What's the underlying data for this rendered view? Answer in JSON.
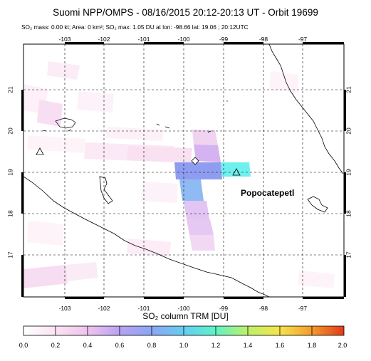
{
  "title": "Suomi NPP/OMPS - 08/16/2015 20:12-20:13 UT - Orbit 19699",
  "subtitle": "SO₂ mass: 0.00 kt; Area: 0 km²; SO₂ max: 1.05 DU at lon: -98.66 lat: 19.06 ; 20:12UTC",
  "map": {
    "lon_ticks": [
      "-103",
      "-102",
      "-101",
      "-100",
      "-99",
      "-98",
      "-97"
    ],
    "lat_ticks": [
      "21",
      "20",
      "19",
      "18",
      "17"
    ],
    "volcano_label": "Popocatepetl",
    "max_marker_lon": -98.66,
    "max_marker_lat": 19.06
  },
  "colorbar": {
    "title": "SO₂ column TRM [DU]",
    "ticks": [
      "0.0",
      "0.2",
      "0.4",
      "0.6",
      "0.8",
      "1.0",
      "1.2",
      "1.4",
      "1.6",
      "1.8",
      "2.0"
    ],
    "range": [
      0.0,
      2.0
    ]
  },
  "colors": {
    "frame": "#000000",
    "grid": "#000000",
    "so2_low": "#fbe6f3",
    "so2_mid": "#c9a6f0",
    "so2_blue": "#7f9ff0",
    "so2_cyan": "#6df0f0"
  }
}
